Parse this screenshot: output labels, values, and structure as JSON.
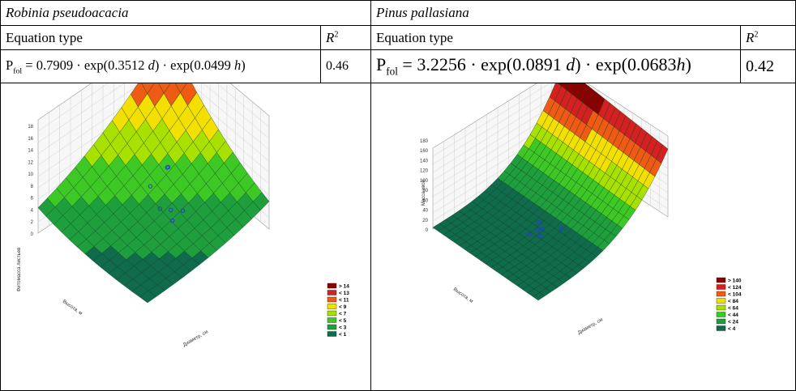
{
  "left": {
    "species": "Robinia pseudoacacia",
    "eq_type_label": "Equation type",
    "r2_label": "R",
    "r2_sup": "2",
    "eq_P": "P",
    "eq_sub": "fol",
    "eq_part1": " = 0.7909 · exp(0.3512 ",
    "eq_var1": "d",
    "eq_part2": ") · exp(0.0499 ",
    "eq_var2": "h",
    "eq_part3": ")",
    "r2_value": "0.46",
    "plot": {
      "z_axis_label": "Фитомасса листьев",
      "y_axis_label": "Высота, м",
      "x_axis_label": "Диаметр, см",
      "z_ticks": [
        "0",
        "2",
        "4",
        "6",
        "8",
        "10",
        "12",
        "14",
        "16",
        "18"
      ],
      "legend": [
        "> 14",
        "< 13",
        "< 11",
        "< 9",
        "< 7",
        "< 5",
        "< 3",
        "< 1"
      ],
      "legend_colors": [
        "#8b0000",
        "#d42020",
        "#ef5a14",
        "#f3e000",
        "#a8e000",
        "#3ec826",
        "#1e9e3c",
        "#0f6b4b"
      ]
    }
  },
  "right": {
    "species": "Pinus pallasiana",
    "eq_type_label": "Equation type",
    "r2_label": "R",
    "r2_sup": "2",
    "eq_P": "P",
    "eq_sub": "fol",
    "eq_part1": " = 3.2256 · exp(0.0891 ",
    "eq_var1": "d",
    "eq_part2": ") · exp(0.0683",
    "eq_var2": "h",
    "eq_part3": ")",
    "r2_value": "0.42",
    "plot": {
      "z_axis_label": "Масса хвои",
      "y_axis_label": "Высота, м",
      "x_axis_label": "Диаметр, см",
      "z_ticks": [
        "0",
        "20",
        "40",
        "60",
        "80",
        "100",
        "120",
        "140",
        "160",
        "180"
      ],
      "legend": [
        "> 140",
        "< 124",
        "< 104",
        "< 84",
        "< 64",
        "< 44",
        "< 24",
        "< 4"
      ],
      "legend_colors": [
        "#8b0000",
        "#d42020",
        "#ef5a14",
        "#f3e000",
        "#a8e000",
        "#3ec826",
        "#1e9e3c",
        "#0f6b4b"
      ]
    }
  }
}
